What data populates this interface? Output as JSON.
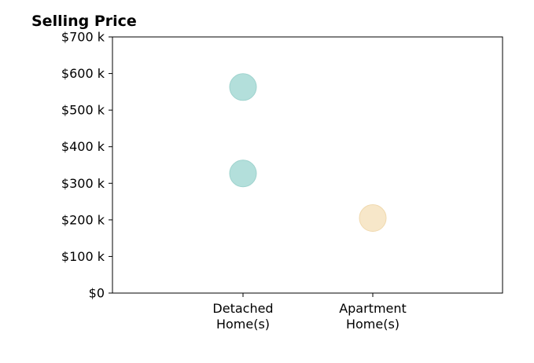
{
  "chart_data": {
    "type": "scatter",
    "title": "Selling Price",
    "xlabel": "",
    "ylabel": "",
    "categories": [
      [
        "Detached",
        "Home(s)"
      ],
      [
        "Apartment",
        "Home(s)"
      ]
    ],
    "ylim": [
      0,
      700000
    ],
    "y_ticks": [
      {
        "value": 0,
        "label": "$0"
      },
      {
        "value": 100000,
        "label": "$100 k"
      },
      {
        "value": 200000,
        "label": "$200 k"
      },
      {
        "value": 300000,
        "label": "$300 k"
      },
      {
        "value": 400000,
        "label": "$400 k"
      },
      {
        "value": 500000,
        "label": "$500 k"
      },
      {
        "value": 600000,
        "label": "$600 k"
      },
      {
        "value": 700000,
        "label": "$700 k"
      }
    ],
    "grid": false,
    "points": [
      {
        "category": 0,
        "y": 563000,
        "color": "#b3dfdb",
        "stroke": "#9fd3ce"
      },
      {
        "category": 0,
        "y": 327000,
        "color": "#b3dfdb",
        "stroke": "#9fd3ce"
      },
      {
        "category": 1,
        "y": 205000,
        "color": "#f7e7c9",
        "stroke": "#f0d9ae"
      }
    ]
  }
}
